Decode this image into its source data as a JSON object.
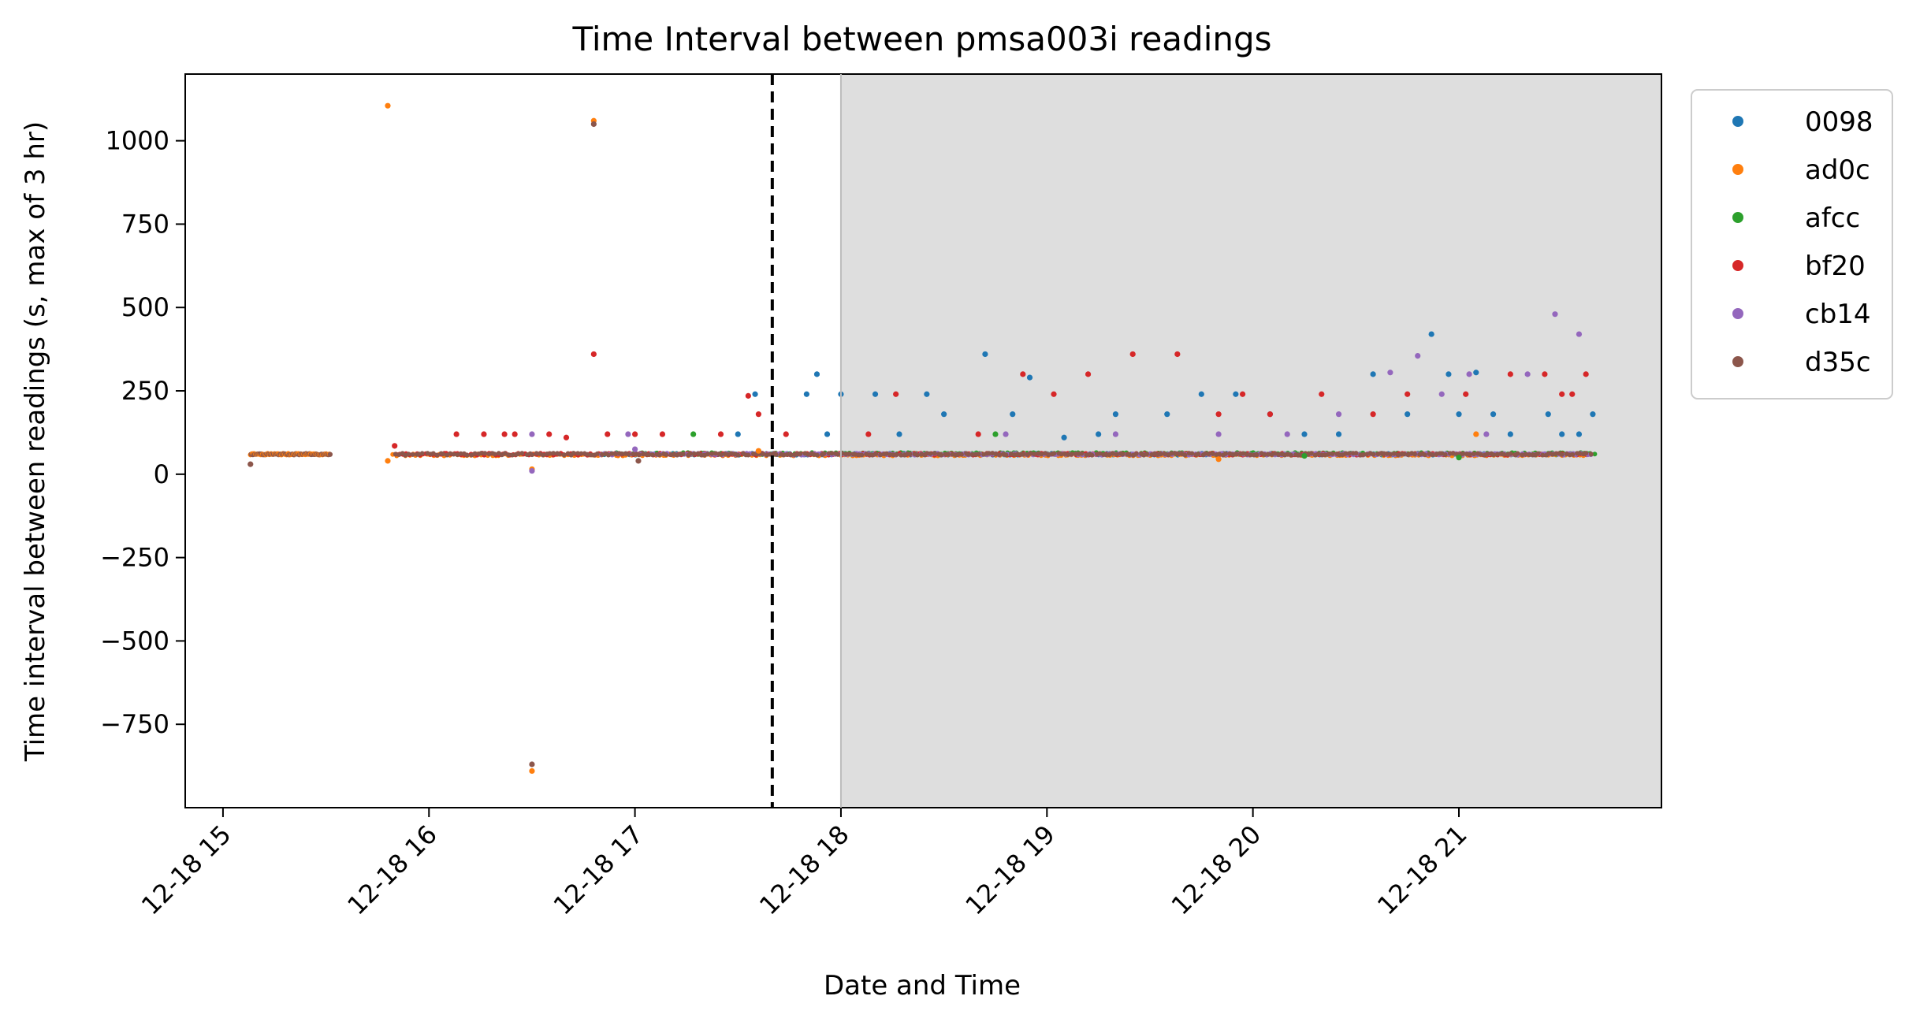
{
  "chart_data": {
    "type": "scatter",
    "title": "Time Interval between pmsa003i readings",
    "xlabel": "Date and Time",
    "ylabel": "Time interval between readings (s, max of 3 hr)",
    "x_range": [
      "2020-12-18 14:49",
      "2020-12-18 21:59"
    ],
    "y_range": [
      -1000,
      1200
    ],
    "x_ticks": [
      {
        "value": "2020-12-18 15:00",
        "label": "12-18 15"
      },
      {
        "value": "2020-12-18 16:00",
        "label": "12-18 16"
      },
      {
        "value": "2020-12-18 17:00",
        "label": "12-18 17"
      },
      {
        "value": "2020-12-18 18:00",
        "label": "12-18 18"
      },
      {
        "value": "2020-12-18 19:00",
        "label": "12-18 19"
      },
      {
        "value": "2020-12-18 20:00",
        "label": "12-18 20"
      },
      {
        "value": "2020-12-18 21:00",
        "label": "12-18 21"
      }
    ],
    "y_ticks": [
      {
        "value": 1000,
        "label": "1000"
      },
      {
        "value": 750,
        "label": "750"
      },
      {
        "value": 500,
        "label": "500"
      },
      {
        "value": 250,
        "label": "250"
      },
      {
        "value": 0,
        "label": "0"
      },
      {
        "value": -250,
        "label": "−250"
      },
      {
        "value": -500,
        "label": "−500"
      },
      {
        "value": -750,
        "label": "−750"
      }
    ],
    "vertical_line": {
      "x": "2020-12-18 17:40",
      "style": "dashed",
      "color": "#000000"
    },
    "shaded_region": {
      "x_start": "2020-12-18 18:00",
      "x_end": "2020-12-18 21:59",
      "color": "#dedede"
    },
    "legend": {
      "placement": "outside-right-top"
    },
    "series": [
      {
        "name": "0098",
        "color": "#1f77b4",
        "baseline": {
          "x_start": "2020-12-18 16:50",
          "x_end": "2020-12-18 21:38",
          "y": 60
        },
        "points": [
          {
            "x": "2020-12-18 17:35",
            "y": 240
          },
          {
            "x": "2020-12-18 17:30",
            "y": 120
          },
          {
            "x": "2020-12-18 17:50",
            "y": 240
          },
          {
            "x": "2020-12-18 17:53",
            "y": 300
          },
          {
            "x": "2020-12-18 17:56",
            "y": 120
          },
          {
            "x": "2020-12-18 18:00",
            "y": 240
          },
          {
            "x": "2020-12-18 18:10",
            "y": 240
          },
          {
            "x": "2020-12-18 18:17",
            "y": 120
          },
          {
            "x": "2020-12-18 18:25",
            "y": 240
          },
          {
            "x": "2020-12-18 18:30",
            "y": 180
          },
          {
            "x": "2020-12-18 18:42",
            "y": 360
          },
          {
            "x": "2020-12-18 18:50",
            "y": 180
          },
          {
            "x": "2020-12-18 18:55",
            "y": 290
          },
          {
            "x": "2020-12-18 19:05",
            "y": 110
          },
          {
            "x": "2020-12-18 19:15",
            "y": 120
          },
          {
            "x": "2020-12-18 19:20",
            "y": 180
          },
          {
            "x": "2020-12-18 19:35",
            "y": 180
          },
          {
            "x": "2020-12-18 19:45",
            "y": 240
          },
          {
            "x": "2020-12-18 19:55",
            "y": 240
          },
          {
            "x": "2020-12-18 20:05",
            "y": 180
          },
          {
            "x": "2020-12-18 20:15",
            "y": 120
          },
          {
            "x": "2020-12-18 20:25",
            "y": 120
          },
          {
            "x": "2020-12-18 20:35",
            "y": 300
          },
          {
            "x": "2020-12-18 20:45",
            "y": 180
          },
          {
            "x": "2020-12-18 20:52",
            "y": 420
          },
          {
            "x": "2020-12-18 20:57",
            "y": 300
          },
          {
            "x": "2020-12-18 21:00",
            "y": 180
          },
          {
            "x": "2020-12-18 21:05",
            "y": 305
          },
          {
            "x": "2020-12-18 21:10",
            "y": 180
          },
          {
            "x": "2020-12-18 21:15",
            "y": 120
          },
          {
            "x": "2020-12-18 21:26",
            "y": 180
          },
          {
            "x": "2020-12-18 21:30",
            "y": 120
          },
          {
            "x": "2020-12-18 21:35",
            "y": 120
          },
          {
            "x": "2020-12-18 21:39",
            "y": 180
          }
        ]
      },
      {
        "name": "ad0c",
        "color": "#ff7f0e",
        "baseline": {
          "x_start": "2020-12-18 15:49",
          "x_end": "2020-12-18 21:37",
          "y": 58
        },
        "points": [
          {
            "x": "2020-12-18 15:48",
            "y": 1105
          },
          {
            "x": "2020-12-18 15:48",
            "y": 40
          },
          {
            "x": "2020-12-18 16:30",
            "y": 15
          },
          {
            "x": "2020-12-18 16:30",
            "y": -890
          },
          {
            "x": "2020-12-18 16:48",
            "y": 1060
          },
          {
            "x": "2020-12-18 17:36",
            "y": 70
          },
          {
            "x": "2020-12-18 19:50",
            "y": 45
          },
          {
            "x": "2020-12-18 21:05",
            "y": 120
          }
        ]
      },
      {
        "name": "afcc",
        "color": "#2ca02c",
        "baseline": {
          "x_start": "2020-12-18 16:50",
          "x_end": "2020-12-18 21:39",
          "y": 62
        },
        "points": [
          {
            "x": "2020-12-18 17:17",
            "y": 120
          },
          {
            "x": "2020-12-18 18:45",
            "y": 120
          },
          {
            "x": "2020-12-18 21:00",
            "y": 50
          },
          {
            "x": "2020-12-18 20:15",
            "y": 55
          }
        ]
      },
      {
        "name": "bf20",
        "color": "#d62728",
        "baseline": {
          "x_start": "2020-12-18 15:50",
          "x_end": "2020-12-18 21:38",
          "y": 60
        },
        "points": [
          {
            "x": "2020-12-18 15:50",
            "y": 85
          },
          {
            "x": "2020-12-18 16:08",
            "y": 120
          },
          {
            "x": "2020-12-18 16:16",
            "y": 120
          },
          {
            "x": "2020-12-18 16:22",
            "y": 120
          },
          {
            "x": "2020-12-18 16:25",
            "y": 120
          },
          {
            "x": "2020-12-18 16:35",
            "y": 120
          },
          {
            "x": "2020-12-18 16:40",
            "y": 110
          },
          {
            "x": "2020-12-18 16:48",
            "y": 360
          },
          {
            "x": "2020-12-18 16:52",
            "y": 120
          },
          {
            "x": "2020-12-18 17:00",
            "y": 120
          },
          {
            "x": "2020-12-18 17:08",
            "y": 120
          },
          {
            "x": "2020-12-18 17:25",
            "y": 120
          },
          {
            "x": "2020-12-18 17:33",
            "y": 235
          },
          {
            "x": "2020-12-18 17:36",
            "y": 180
          },
          {
            "x": "2020-12-18 17:44",
            "y": 120
          },
          {
            "x": "2020-12-18 18:08",
            "y": 120
          },
          {
            "x": "2020-12-18 18:16",
            "y": 240
          },
          {
            "x": "2020-12-18 18:40",
            "y": 120
          },
          {
            "x": "2020-12-18 18:53",
            "y": 300
          },
          {
            "x": "2020-12-18 19:02",
            "y": 240
          },
          {
            "x": "2020-12-18 19:12",
            "y": 300
          },
          {
            "x": "2020-12-18 19:25",
            "y": 360
          },
          {
            "x": "2020-12-18 19:38",
            "y": 360
          },
          {
            "x": "2020-12-18 19:50",
            "y": 180
          },
          {
            "x": "2020-12-18 19:57",
            "y": 240
          },
          {
            "x": "2020-12-18 20:05",
            "y": 180
          },
          {
            "x": "2020-12-18 20:20",
            "y": 240
          },
          {
            "x": "2020-12-18 20:35",
            "y": 180
          },
          {
            "x": "2020-12-18 20:45",
            "y": 240
          },
          {
            "x": "2020-12-18 21:02",
            "y": 240
          },
          {
            "x": "2020-12-18 21:15",
            "y": 300
          },
          {
            "x": "2020-12-18 21:25",
            "y": 300
          },
          {
            "x": "2020-12-18 21:30",
            "y": 240
          },
          {
            "x": "2020-12-18 21:33",
            "y": 240
          },
          {
            "x": "2020-12-18 21:37",
            "y": 300
          }
        ]
      },
      {
        "name": "cb14",
        "color": "#9467bd",
        "baseline": {
          "x_start": "2020-12-18 16:50",
          "x_end": "2020-12-18 21:38",
          "y": 60
        },
        "points": [
          {
            "x": "2020-12-18 16:30",
            "y": 10
          },
          {
            "x": "2020-12-18 16:30",
            "y": 120
          },
          {
            "x": "2020-12-18 16:58",
            "y": 120
          },
          {
            "x": "2020-12-18 17:00",
            "y": 75
          },
          {
            "x": "2020-12-18 18:48",
            "y": 120
          },
          {
            "x": "2020-12-18 19:20",
            "y": 120
          },
          {
            "x": "2020-12-18 19:50",
            "y": 120
          },
          {
            "x": "2020-12-18 20:10",
            "y": 120
          },
          {
            "x": "2020-12-18 20:25",
            "y": 180
          },
          {
            "x": "2020-12-18 20:40",
            "y": 305
          },
          {
            "x": "2020-12-18 20:48",
            "y": 355
          },
          {
            "x": "2020-12-18 20:55",
            "y": 240
          },
          {
            "x": "2020-12-18 21:03",
            "y": 300
          },
          {
            "x": "2020-12-18 21:08",
            "y": 120
          },
          {
            "x": "2020-12-18 21:20",
            "y": 300
          },
          {
            "x": "2020-12-18 21:28",
            "y": 480
          },
          {
            "x": "2020-12-18 21:35",
            "y": 420
          }
        ]
      },
      {
        "name": "d35c",
        "color": "#8c564b",
        "baseline": {
          "x_start": "2020-12-18 15:50",
          "x_end": "2020-12-18 21:38",
          "y": 60
        },
        "points": [
          {
            "x": "2020-12-18 15:08",
            "y": 30
          },
          {
            "x": "2020-12-18 16:30",
            "y": -870
          },
          {
            "x": "2020-12-18 16:48",
            "y": 1050
          },
          {
            "x": "2020-12-18 17:01",
            "y": 40
          }
        ]
      }
    ],
    "early_cluster": {
      "x_start": "2020-12-18 15:08",
      "x_end": "2020-12-18 15:31",
      "y": 60
    }
  }
}
